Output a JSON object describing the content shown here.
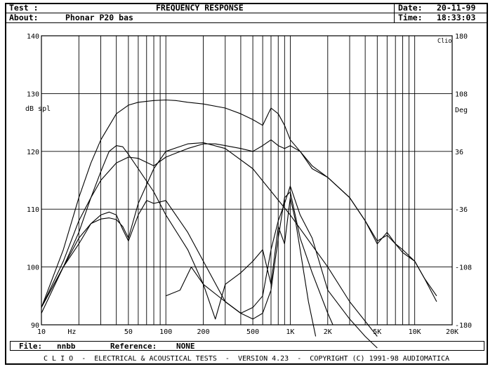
{
  "header": {
    "test_label": "Test :",
    "title": "FREQUENCY RESPONSE",
    "about_label": "About:",
    "about_value": "Phonar P20 bas",
    "date_label": "Date:",
    "date_value": "20-11-99",
    "time_label": "Time:",
    "time_value": "18:33:03"
  },
  "info": {
    "file_label": "File:",
    "file_value": "nnbb",
    "reference_label": "Reference:",
    "reference_value": "NONE"
  },
  "footer": {
    "text": "C L I O  -  ELECTRICAL & ACOUSTICAL TESTS  -  VERSION 4.23  -  COPYRIGHT (C) 1991-98 AUDIOMATICA"
  },
  "chart_data": {
    "type": "line",
    "title": "FREQUENCY RESPONSE",
    "badge": "Clio",
    "xscale": "log",
    "xlim": [
      10,
      20000
    ],
    "ylim": [
      90,
      140
    ],
    "y2lim": [
      -180,
      180
    ],
    "ylabel": "dB spl",
    "y2label": "Deg",
    "grid": true,
    "x_ticks": [
      {
        "v": 10,
        "label": "10"
      },
      {
        "v": 20,
        "label": "Hz"
      },
      {
        "v": 50,
        "label": "50"
      },
      {
        "v": 100,
        "label": "100"
      },
      {
        "v": 200,
        "label": "200"
      },
      {
        "v": 500,
        "label": "500"
      },
      {
        "v": 1000,
        "label": "1K"
      },
      {
        "v": 2000,
        "label": "2K"
      },
      {
        "v": 5000,
        "label": "5K"
      },
      {
        "v": 10000,
        "label": "10K"
      },
      {
        "v": 20000,
        "label": "20K"
      }
    ],
    "y_ticks": [
      90,
      100,
      110,
      120,
      130,
      140
    ],
    "y2_ticks": [
      -180,
      -108,
      -36,
      36,
      108,
      180
    ],
    "series": [
      {
        "x": [
          10,
          15,
          20,
          25,
          30,
          40,
          50,
          60,
          80,
          100,
          120,
          150,
          200,
          300,
          400,
          500,
          600,
          700,
          800,
          900,
          1000,
          1200,
          1500,
          2000,
          3000,
          4000,
          5000,
          6000,
          7000,
          8000,
          10000,
          12000,
          15000
        ],
        "y": [
          93,
          103,
          112,
          118,
          122,
          126.5,
          128,
          128.5,
          128.8,
          128.9,
          128.8,
          128.5,
          128.2,
          127.5,
          126.5,
          125.5,
          124.5,
          127.5,
          126.5,
          124.5,
          122,
          120,
          117,
          115.5,
          112,
          108,
          104,
          106,
          104,
          102.5,
          101,
          98,
          94
        ]
      },
      {
        "x": [
          10,
          15,
          20,
          25,
          30,
          40,
          50,
          60,
          80,
          100,
          150,
          200,
          250,
          300,
          400,
          500,
          600,
          700,
          800,
          900,
          1000,
          1200,
          1500,
          2000,
          3000,
          4000,
          5000,
          6000,
          7000,
          8000,
          10000,
          12000,
          15000
        ],
        "y": [
          93,
          101,
          108,
          112,
          115,
          118,
          119,
          118.8,
          117.5,
          119,
          120.5,
          121.3,
          121.3,
          121,
          120.5,
          120,
          121,
          122,
          121,
          120.5,
          121,
          120,
          117.5,
          115.5,
          112,
          108,
          104.5,
          105.5,
          104,
          103,
          101,
          98,
          95
        ]
      },
      {
        "x": [
          10,
          15,
          20,
          25,
          30,
          35,
          40,
          45,
          50,
          60,
          80,
          100,
          150,
          200,
          300,
          400,
          500,
          600,
          700,
          800,
          900,
          1000,
          1200,
          1500,
          2000,
          3000,
          4000,
          5000
        ],
        "y": [
          93,
          100,
          106,
          112,
          116.5,
          120,
          121,
          120.8,
          119.5,
          117,
          113,
          109,
          103,
          97,
          94,
          92,
          93,
          95,
          103,
          108,
          111,
          114,
          109,
          105,
          96,
          91,
          88,
          86
        ]
      },
      {
        "x": [
          10,
          15,
          20,
          25,
          30,
          35,
          40,
          45,
          50,
          60,
          80,
          100,
          150,
          200,
          300,
          500,
          1000,
          2000,
          3000,
          5000
        ],
        "y": [
          93,
          100,
          105,
          107.5,
          108.3,
          108.5,
          108.2,
          107,
          105,
          111,
          117,
          120,
          121.3,
          121.5,
          120.5,
          117,
          109,
          100,
          94,
          88
        ]
      },
      {
        "x": [
          10,
          15,
          20,
          25,
          30,
          35,
          40,
          45,
          50,
          60,
          70,
          80,
          100,
          150,
          200,
          300,
          400,
          500,
          600,
          700,
          800,
          900,
          1000,
          1200,
          1500,
          2000,
          2200
        ],
        "y": [
          92,
          100,
          104,
          107.5,
          109,
          109.5,
          109,
          106.5,
          104.5,
          109,
          111.5,
          111,
          111.5,
          106,
          101,
          94,
          92,
          91,
          92,
          96,
          105,
          112,
          113,
          105,
          99,
          92,
          90
        ]
      },
      {
        "x": [
          100,
          130,
          160,
          200,
          250,
          300,
          400,
          500,
          600,
          700,
          800,
          900,
          1000,
          1100,
          1200,
          1400,
          1600
        ],
        "y": [
          95,
          96,
          100,
          97,
          91,
          97,
          99,
          101,
          103,
          97,
          107,
          104,
          112,
          108,
          103,
          94,
          88
        ]
      }
    ]
  }
}
